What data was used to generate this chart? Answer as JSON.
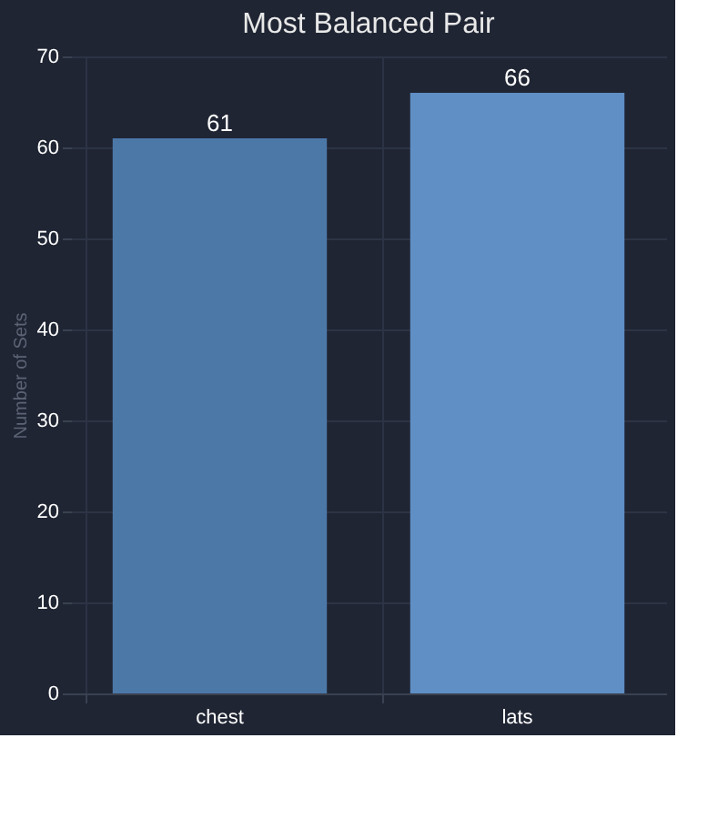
{
  "chart_data": {
    "type": "bar",
    "title": "Most Balanced Pair",
    "ylabel": "Number of Sets",
    "categories": [
      "chest",
      "lats"
    ],
    "values": [
      61,
      66
    ],
    "colors": [
      "#4c78a8",
      "#5f8fc4"
    ],
    "ylim": [
      0,
      70
    ],
    "yticks": [
      0,
      10,
      20,
      30,
      40,
      50,
      60,
      70
    ],
    "grid": true,
    "data_labels": true
  }
}
